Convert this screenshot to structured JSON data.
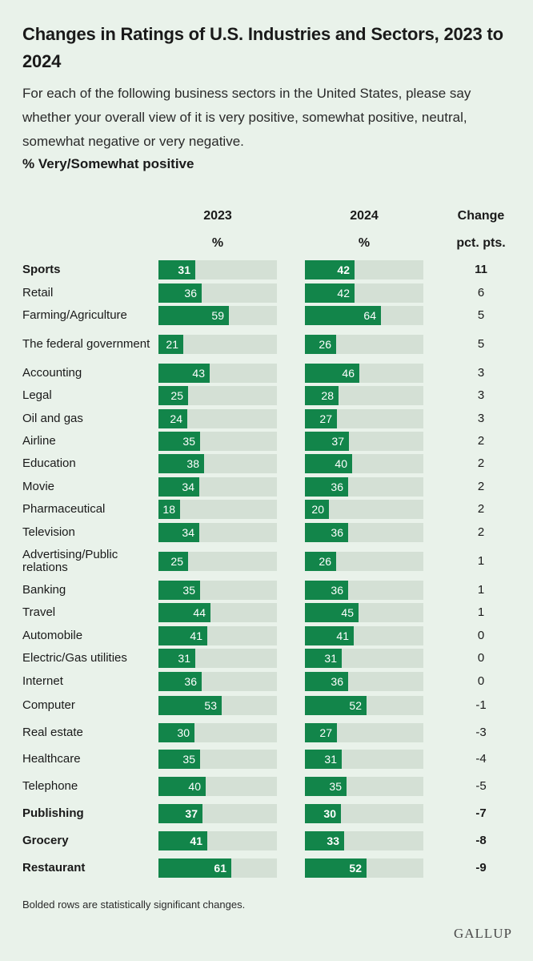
{
  "title": "Changes in Ratings of U.S. Industries and Sectors, 2023 to 2024",
  "question": "For each of the following business sectors in the United States, please say whether your overall view of it is very positive, somewhat positive, neutral, somewhat negative or very negative.",
  "subtitle": "% Very/Somewhat positive",
  "columns": {
    "y2023": "2023",
    "y2024": "2024",
    "pct": "%",
    "change": "Change",
    "change_unit": "pct. pts."
  },
  "footnote": "Bolded rows are statistically significant changes.",
  "logo": "GALLUP",
  "colors": {
    "bar": "#12854a",
    "track": "#d4e0d5",
    "background": "#e9f2ea"
  },
  "chart_data": {
    "type": "bar",
    "title": "Changes in Ratings of U.S. Industries and Sectors, 2023 to 2024",
    "ylabel": "% Very/Somewhat positive",
    "xlim": [
      0,
      100
    ],
    "categories": [
      "Sports",
      "Retail",
      "Farming/Agriculture",
      "The federal government",
      "Accounting",
      "Legal",
      "Oil and gas",
      "Airline",
      "Education",
      "Movie",
      "Pharmaceutical",
      "Television",
      "Advertising/Public relations",
      "Banking",
      "Travel",
      "Automobile",
      "Electric/Gas utilities",
      "Internet",
      "Computer",
      "Real estate",
      "Healthcare",
      "Telephone",
      "Publishing",
      "Grocery",
      "Restaurant"
    ],
    "series": [
      {
        "name": "2023",
        "values": [
          31,
          36,
          59,
          21,
          43,
          25,
          24,
          35,
          38,
          34,
          18,
          34,
          25,
          35,
          44,
          41,
          31,
          36,
          53,
          30,
          35,
          40,
          37,
          41,
          61
        ]
      },
      {
        "name": "2024",
        "values": [
          42,
          42,
          64,
          26,
          46,
          28,
          27,
          37,
          40,
          36,
          20,
          36,
          26,
          36,
          45,
          41,
          31,
          36,
          52,
          27,
          31,
          35,
          30,
          33,
          52
        ]
      }
    ],
    "change": [
      "11",
      "6",
      "5",
      "5",
      "3",
      "3",
      "3",
      "2",
      "2",
      "2",
      "2",
      "2",
      "1",
      "1",
      "1",
      "0",
      "0",
      "0",
      "-1",
      "-3",
      "-4",
      "-5",
      "-7",
      "-8",
      "-9"
    ],
    "significant": [
      true,
      false,
      false,
      false,
      false,
      false,
      false,
      false,
      false,
      false,
      false,
      false,
      false,
      false,
      false,
      false,
      false,
      false,
      false,
      false,
      false,
      false,
      true,
      true,
      true
    ]
  }
}
